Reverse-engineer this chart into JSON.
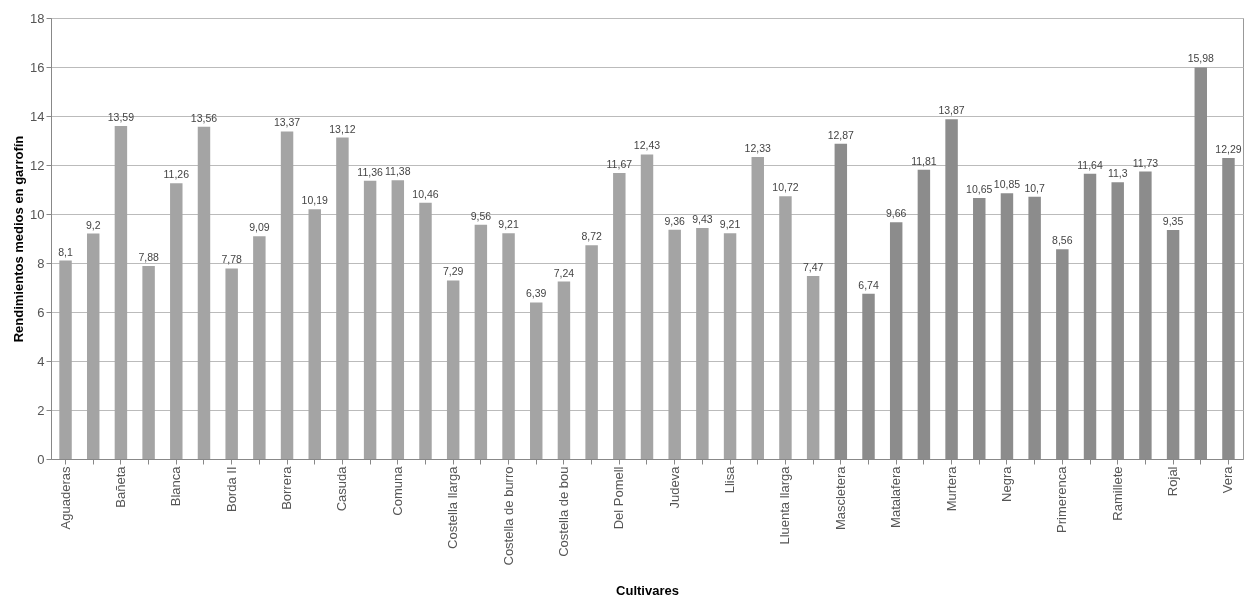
{
  "chart_data": {
    "type": "bar",
    "xlabel": "Cultivares",
    "ylabel": "Rendimientos medios en garrofín",
    "categories": [
      "Aguaderas",
      null,
      "Bañeta",
      null,
      "Blanca",
      null,
      "Borda II",
      null,
      "Borrera",
      null,
      "Casuda",
      null,
      "Comuna",
      null,
      "Costella llarga",
      null,
      "Costella de burro",
      null,
      "Costella de bou",
      null,
      "Del Pomell",
      null,
      "Judeva",
      null,
      "Llisa",
      null,
      "Lluenta llarga",
      null,
      "Mascletera",
      null,
      "Matalafera",
      null,
      "Murtera",
      null,
      "Negra",
      null,
      "Primerenca",
      null,
      "Ramillete",
      null,
      "Rojal",
      null,
      "Vera"
    ],
    "values": [
      8.1,
      9.2,
      13.59,
      7.88,
      11.26,
      13.56,
      7.78,
      9.09,
      13.37,
      10.19,
      13.12,
      11.36,
      11.38,
      10.46,
      7.29,
      9.56,
      9.21,
      6.39,
      7.24,
      8.72,
      11.67,
      12.43,
      9.36,
      9.43,
      9.21,
      12.33,
      10.72,
      7.47,
      12.87,
      6.74,
      9.66,
      11.81,
      13.87,
      10.65,
      10.85,
      10.7,
      8.56,
      11.64,
      11.3,
      11.73,
      9.35,
      15.98,
      12.29
    ],
    "value_labels": [
      "8,1",
      "9,2",
      "13,59",
      "7,88",
      "11,26",
      "13,56",
      "7,78",
      "9,09",
      "13,37",
      "10,19",
      "13,12",
      "11,36",
      "11,38",
      "10,46",
      "7,29",
      "9,56",
      "9,21",
      "6,39",
      "7,24",
      "8,72",
      "11,67",
      "12,43",
      "9,36",
      "9,43",
      "9,21",
      "12,33",
      "10,72",
      "7,47",
      "12,87",
      "6,74",
      "9,66",
      "11,81",
      "13,87",
      "10,65",
      "10,85",
      "10,7",
      "8,56",
      "11,64",
      "11,3",
      "11,73",
      "9,35",
      "15,98",
      "12,29"
    ],
    "colors": [
      "#a4a4a4",
      "#a4a4a4",
      "#a4a4a4",
      "#a4a4a4",
      "#a4a4a4",
      "#a4a4a4",
      "#a4a4a4",
      "#a4a4a4",
      "#a4a4a4",
      "#a4a4a4",
      "#a4a4a4",
      "#a4a4a4",
      "#a4a4a4",
      "#a4a4a4",
      "#a4a4a4",
      "#a4a4a4",
      "#a4a4a4",
      "#a4a4a4",
      "#a4a4a4",
      "#a4a4a4",
      "#a4a4a4",
      "#a4a4a4",
      "#a4a4a4",
      "#a4a4a4",
      "#a4a4a4",
      "#a4a4a4",
      "#a4a4a4",
      "#a4a4a4",
      "#8c8c8c",
      "#8c8c8c",
      "#8c8c8c",
      "#8c8c8c",
      "#8c8c8c",
      "#8c8c8c",
      "#8c8c8c",
      "#8c8c8c",
      "#8c8c8c",
      "#8c8c8c",
      "#8c8c8c",
      "#8c8c8c",
      "#8c8c8c",
      "#8c8c8c",
      "#8c8c8c"
    ],
    "ylim": [
      0,
      18
    ],
    "yticks": [
      0,
      2,
      4,
      6,
      8,
      10,
      12,
      14,
      16,
      18
    ],
    "grid": "y"
  }
}
